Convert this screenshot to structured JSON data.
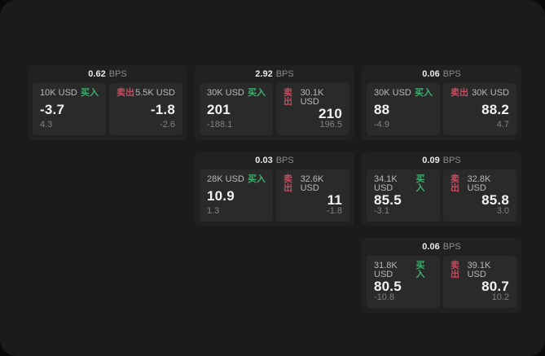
{
  "labels": {
    "bps_unit": "BPS",
    "buy": "买入",
    "sell": "卖出"
  },
  "colors": {
    "buy_green": "#3fae6e",
    "sell_red": "#c74b5f"
  },
  "cards": [
    {
      "bps": "0.62",
      "buy": {
        "amount": "10K USD",
        "price": "-3.7",
        "sub": "4.3"
      },
      "sell": {
        "amount": "5.5K USD",
        "price": "-1.8",
        "sub": "-2.6"
      }
    },
    {
      "bps": "2.92",
      "buy": {
        "amount": "30K USD",
        "price": "201",
        "sub": "-188.1"
      },
      "sell": {
        "amount": "30.1K USD",
        "price": "210",
        "sub": "196.5"
      }
    },
    {
      "bps": "0.06",
      "buy": {
        "amount": "30K USD",
        "price": "88",
        "sub": "-4.9"
      },
      "sell": {
        "amount": "30K USD",
        "price": "88.2",
        "sub": "4.7"
      }
    },
    {
      "bps": "0.03",
      "buy": {
        "amount": "28K USD",
        "price": "10.9",
        "sub": "1.3"
      },
      "sell": {
        "amount": "32.6K USD",
        "price": "11",
        "sub": "-1.8"
      }
    },
    {
      "bps": "0.09",
      "buy": {
        "amount": "34.1K USD",
        "price": "85.5",
        "sub": "-3.1"
      },
      "sell": {
        "amount": "32.8K USD",
        "price": "85.8",
        "sub": "3.0"
      }
    },
    {
      "bps": "0.06",
      "buy": {
        "amount": "31.8K USD",
        "price": "80.5",
        "sub": "-10.8"
      },
      "sell": {
        "amount": "39.1K USD",
        "price": "80.7",
        "sub": "10.2"
      }
    }
  ]
}
